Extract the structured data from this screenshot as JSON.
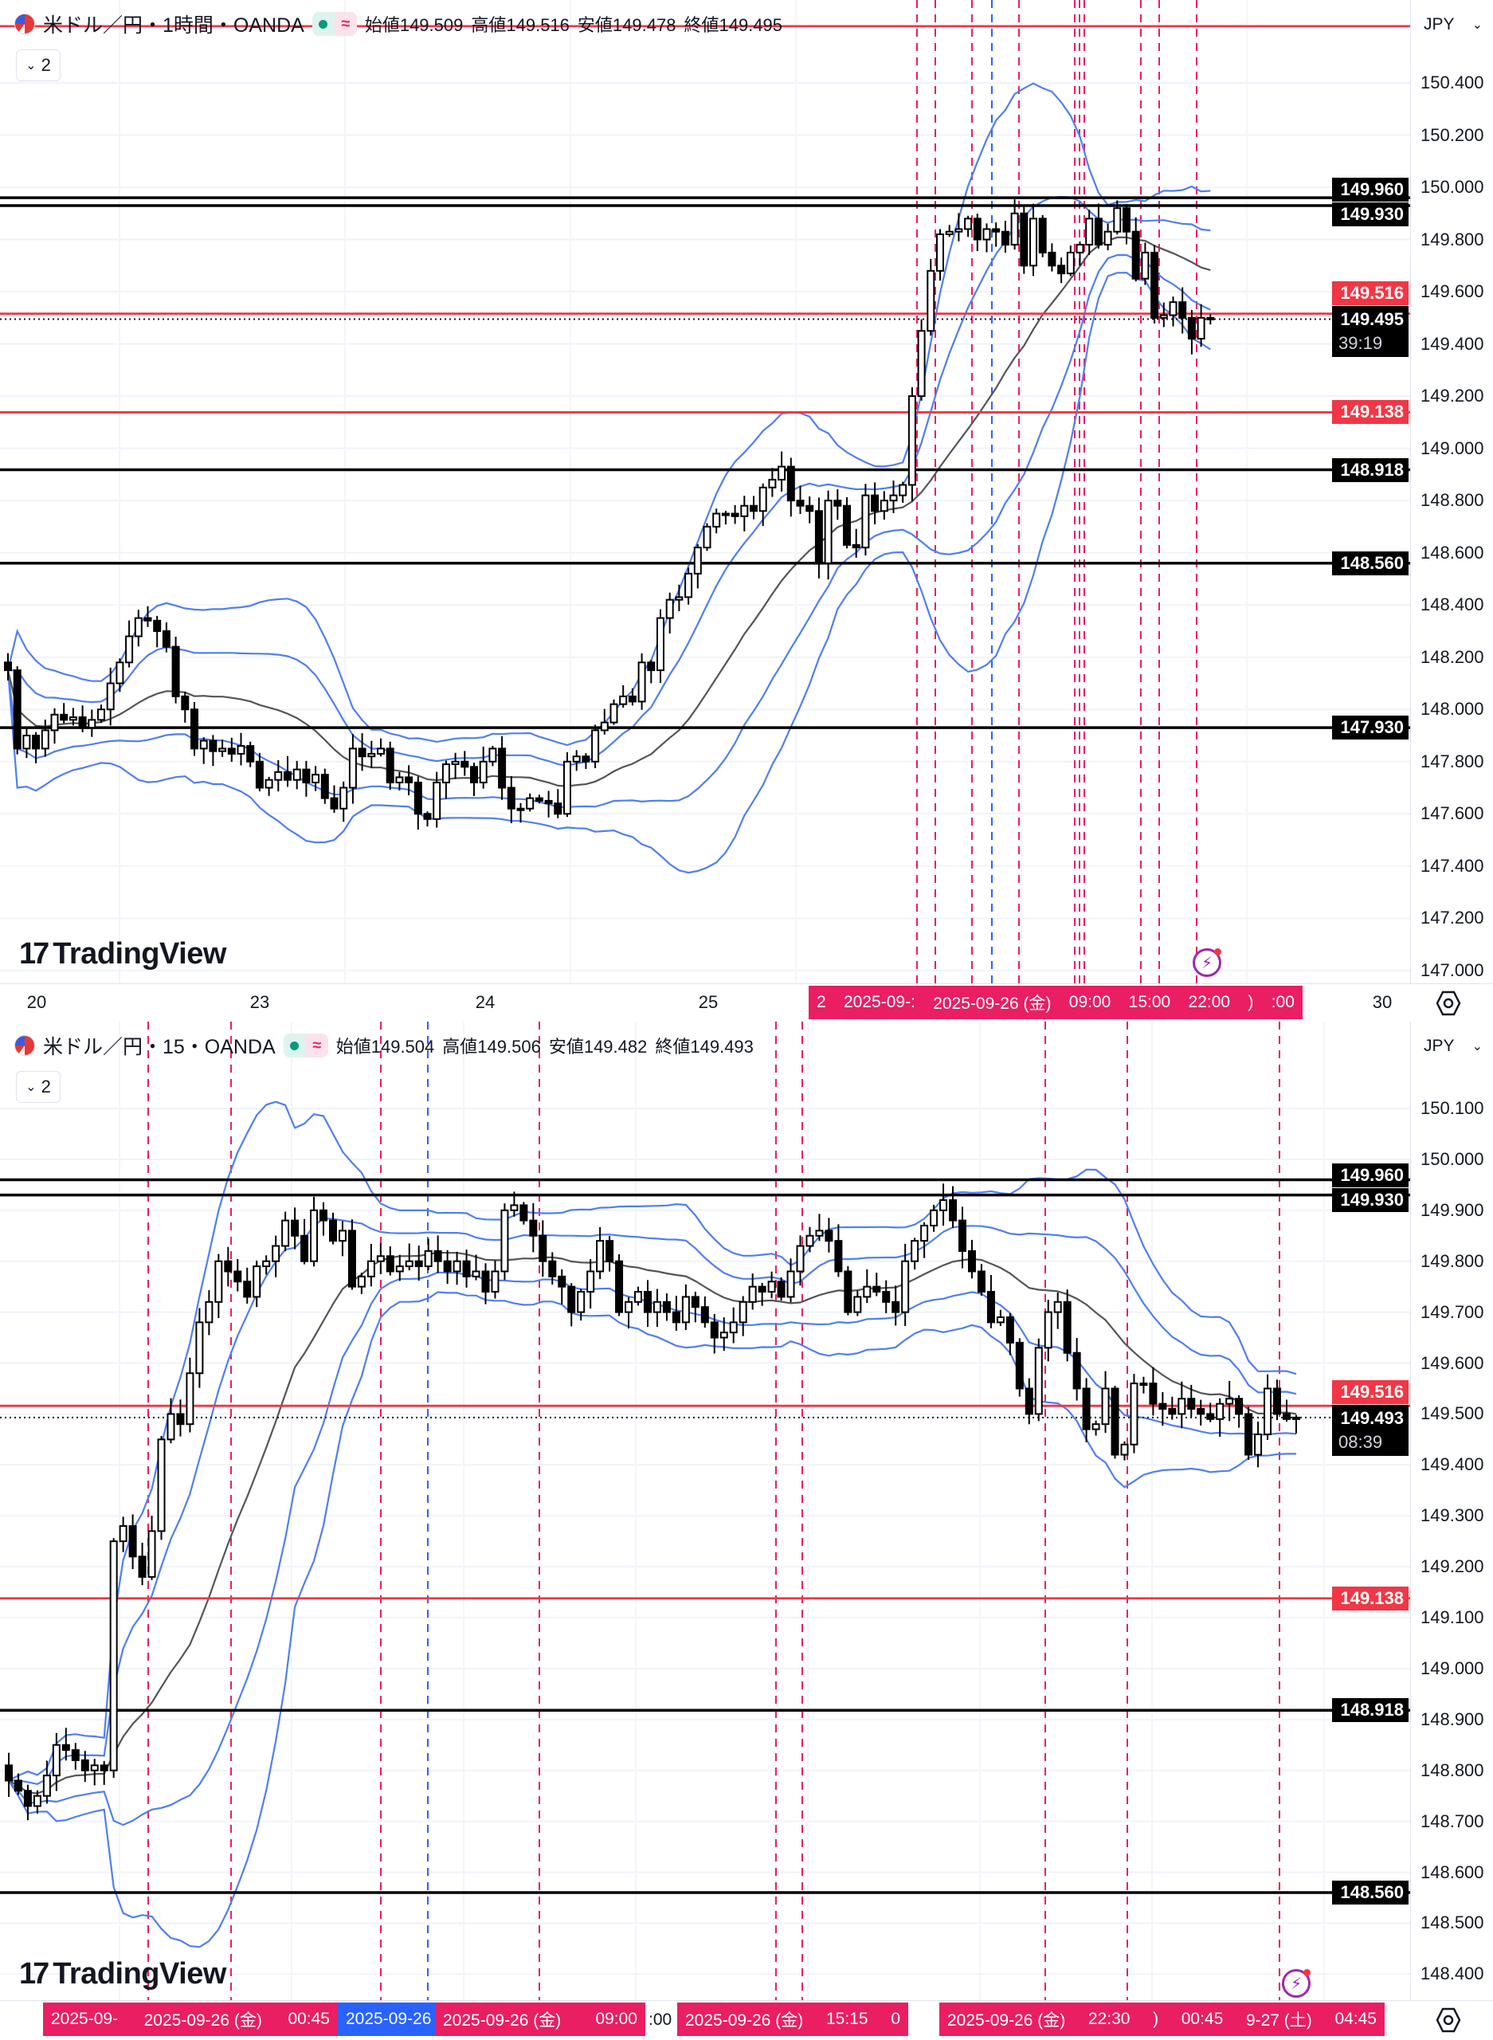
{
  "panes": [
    {
      "title": "米ドル／円・1時間・OANDA",
      "indicators_toggle": "2",
      "status_dot_color": "#089981",
      "ohlc": [
        {
          "label": "始値",
          "value": "149.509"
        },
        {
          "label": "高値",
          "value": "149.516"
        },
        {
          "label": "安値",
          "value": "149.478"
        },
        {
          "label": "終値",
          "value": "149.495"
        }
      ],
      "currency": "JPY",
      "countdown": "39:19",
      "logo": "TradingView",
      "time_axis": {
        "ticks": [
          "20",
          "23",
          "24",
          "25",
          "30"
        ],
        "highlight_groups": [
          {
            "color": "#e91e63",
            "labels": [
              "2",
              "2025-09-:",
              "2025-09-26 (金)",
              "09:00",
              "15:00",
              "22:00",
              ")",
              ":00"
            ]
          }
        ],
        "plain_labels": []
      }
    },
    {
      "title": "米ドル／円・15・OANDA",
      "indicators_toggle": "2",
      "status_dot_color": "#089981",
      "ohlc": [
        {
          "label": "始値",
          "value": "149.504"
        },
        {
          "label": "高値",
          "value": "149.506"
        },
        {
          "label": "安値",
          "value": "149.482"
        },
        {
          "label": "終値",
          "value": "149.493"
        }
      ],
      "currency": "JPY",
      "countdown": "08:39",
      "logo": "TradingView",
      "time_axis": {
        "ticks": [],
        "highlight_groups": [
          {
            "color": "#e91e63",
            "labels": [
              "2025-09-",
              "2025-09-26 (金)",
              "00:45"
            ]
          },
          {
            "color": "#2962ff",
            "labels": [
              "2025-09-26 ("
            ]
          },
          {
            "color": "#e91e63",
            "labels": [
              "2025-09-26 (金)",
              "09:00"
            ]
          },
          {
            "color": "#e91e63",
            "labels": [
              "2025-09-26 (金)",
              "15:15",
              "0"
            ]
          },
          {
            "color": "#e91e63",
            "labels": [
              "2025-09-26 (金)",
              "22:30",
              ")",
              "00:45",
              "9-27 (土)",
              "04:45"
            ]
          }
        ],
        "plain_labels": [
          ":00"
        ]
      }
    }
  ],
  "chart_data": [
    {
      "type": "candlestick",
      "symbol": "USD/JPY",
      "timeframe": "1時間",
      "up_color": "#ffffff",
      "down_color": "#000000",
      "indicator_colors": {
        "basis": "#555555",
        "bands": "#4f7ff0"
      },
      "current_price": "149.495",
      "ylim": [
        146.95,
        150.72
      ],
      "y_ticks": [
        "150.400",
        "150.200",
        "150.000",
        "149.800",
        "149.600",
        "149.400",
        "149.200",
        "149.000",
        "148.800",
        "148.600",
        "148.400",
        "148.200",
        "148.000",
        "147.800",
        "147.600",
        "147.400",
        "147.200",
        "147.000"
      ],
      "close": [
        148.15,
        147.85,
        147.9,
        147.85,
        147.92,
        147.98,
        147.96,
        147.97,
        147.93,
        147.96,
        148.0,
        148.1,
        148.18,
        148.28,
        148.35,
        148.34,
        148.3,
        148.24,
        148.05,
        148.0,
        147.85,
        147.88,
        147.84,
        147.85,
        147.83,
        147.86,
        147.8,
        147.7,
        147.73,
        147.76,
        147.73,
        147.77,
        147.72,
        147.75,
        147.66,
        147.62,
        147.7,
        147.85,
        147.82,
        147.83,
        147.85,
        147.72,
        147.74,
        147.72,
        147.6,
        147.58,
        147.72,
        147.79,
        147.8,
        147.78,
        147.72,
        147.8,
        147.85,
        147.7,
        147.62,
        147.62,
        147.66,
        147.65,
        147.64,
        147.6,
        147.8,
        147.82,
        147.8,
        147.92,
        147.95,
        148.02,
        148.05,
        148.03,
        148.18,
        148.15,
        148.35,
        148.42,
        148.43,
        148.52,
        148.62,
        148.7,
        148.75,
        148.75,
        148.74,
        148.78,
        148.76,
        148.85,
        148.88,
        148.93,
        148.8,
        148.78,
        148.76,
        148.56,
        148.8,
        148.78,
        148.63,
        148.62,
        148.82,
        148.76,
        148.8,
        148.82,
        148.86,
        149.2,
        149.45,
        149.68,
        149.82,
        149.83,
        149.84,
        149.88,
        149.8,
        149.84,
        149.83,
        149.78,
        149.9,
        149.7,
        149.88,
        149.75,
        149.7,
        149.67,
        149.75,
        149.78,
        149.88,
        149.78,
        149.83,
        149.92,
        149.83,
        149.65,
        149.75,
        149.5,
        149.51,
        149.56,
        149.5,
        149.42,
        149.5,
        149.495
      ],
      "levels": [
        {
          "price": "150.617",
          "color": "#f23645",
          "badge": false
        },
        {
          "price": "149.960",
          "color": "#000000",
          "badge": true
        },
        {
          "price": "149.930",
          "color": "#000000",
          "badge": true
        },
        {
          "price": "149.516",
          "color": "#f23645",
          "badge": true
        },
        {
          "price": "149.138",
          "color": "#f23645",
          "badge": true
        },
        {
          "price": "148.918",
          "color": "#000000",
          "badge": true
        },
        {
          "price": "148.560",
          "color": "#000000",
          "badge": true
        },
        {
          "price": "147.930",
          "color": "#000000",
          "badge": true
        }
      ]
    },
    {
      "type": "candlestick",
      "symbol": "USD/JPY",
      "timeframe": "15",
      "up_color": "#ffffff",
      "down_color": "#000000",
      "indicator_colors": {
        "basis": "#555555",
        "bands": "#4f7ff0"
      },
      "current_price": "149.493",
      "ylim": [
        148.3,
        150.27
      ],
      "y_ticks": [
        "150.100",
        "150.000",
        "149.900",
        "149.800",
        "149.700",
        "149.600",
        "149.500",
        "149.400",
        "149.300",
        "149.200",
        "149.100",
        "149.000",
        "148.900",
        "148.800",
        "148.700",
        "148.600",
        "148.500",
        "148.400"
      ],
      "close": [
        148.78,
        148.76,
        148.73,
        148.75,
        148.79,
        148.85,
        148.84,
        148.82,
        148.8,
        148.81,
        148.8,
        149.25,
        149.28,
        149.22,
        149.18,
        149.27,
        149.45,
        149.5,
        149.48,
        149.58,
        149.68,
        149.72,
        149.8,
        149.78,
        149.76,
        149.73,
        149.79,
        149.8,
        149.83,
        149.88,
        149.85,
        149.8,
        149.9,
        149.88,
        149.84,
        149.86,
        149.75,
        149.77,
        149.8,
        149.81,
        149.78,
        149.79,
        149.8,
        149.79,
        149.82,
        149.8,
        149.78,
        149.8,
        149.77,
        149.78,
        149.74,
        149.78,
        149.9,
        149.91,
        149.88,
        149.85,
        149.8,
        149.77,
        149.75,
        149.7,
        149.74,
        149.78,
        149.84,
        149.8,
        149.7,
        149.72,
        149.74,
        149.7,
        149.72,
        149.7,
        149.68,
        149.73,
        149.71,
        149.68,
        149.65,
        149.66,
        149.68,
        149.72,
        149.75,
        149.74,
        149.76,
        149.73,
        149.78,
        149.83,
        149.85,
        149.86,
        149.84,
        149.78,
        149.7,
        149.73,
        149.75,
        149.74,
        149.72,
        149.7,
        149.8,
        149.84,
        149.87,
        149.9,
        149.92,
        149.88,
        149.82,
        149.78,
        149.74,
        149.68,
        149.69,
        149.64,
        149.55,
        149.5,
        149.63,
        149.7,
        149.72,
        149.62,
        149.55,
        149.47,
        149.48,
        149.55,
        149.42,
        149.44,
        149.56,
        149.56,
        149.52,
        149.51,
        149.5,
        149.53,
        149.51,
        149.5,
        149.49,
        149.52,
        149.53,
        149.5,
        149.42,
        149.46,
        149.55,
        149.5,
        149.49,
        149.493
      ],
      "levels": [
        {
          "price": "149.960",
          "color": "#000000",
          "badge": true
        },
        {
          "price": "149.930",
          "color": "#000000",
          "badge": true
        },
        {
          "price": "149.516",
          "color": "#f23645",
          "badge": true
        },
        {
          "price": "149.138",
          "color": "#f23645",
          "badge": true
        },
        {
          "price": "148.918",
          "color": "#000000",
          "badge": true
        },
        {
          "price": "148.560",
          "color": "#000000",
          "badge": true
        }
      ]
    }
  ]
}
